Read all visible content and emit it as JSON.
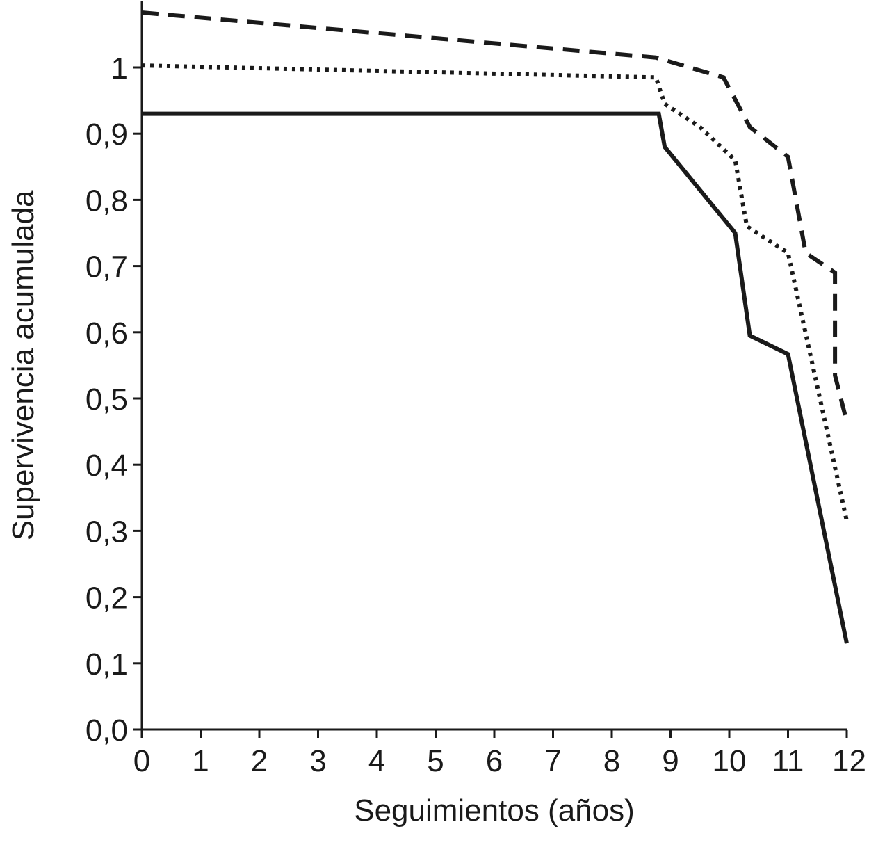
{
  "chart_data": {
    "type": "line",
    "title": "",
    "xlabel": "Seguimientos (años)",
    "ylabel": "Supervivencia acumulada",
    "xlim": [
      0,
      12
    ],
    "ylim": [
      0,
      1.1
    ],
    "x_ticks": [
      0,
      1,
      2,
      3,
      4,
      5,
      6,
      7,
      8,
      9,
      10,
      11,
      12
    ],
    "x_tick_labels": [
      "0",
      "1",
      "2",
      "3",
      "4",
      "5",
      "6",
      "7",
      "8",
      "9",
      "10",
      "11",
      "12"
    ],
    "y_ticks": [
      0,
      0.1,
      0.2,
      0.3,
      0.4,
      0.5,
      0.6,
      0.7,
      0.8,
      0.9,
      1
    ],
    "y_tick_labels": [
      "0,0",
      "0,1",
      "0,2",
      "0,3",
      "0,4",
      "0,5",
      "0,6",
      "0,7",
      "0,8",
      "0,9",
      "1"
    ],
    "grid": false,
    "legend": "none",
    "colors": {
      "line": "#1a1a1a",
      "background": "#ffffff"
    },
    "series": [
      {
        "style": "solid",
        "x": [
          0,
          8.8,
          8.9,
          10.1,
          10.35,
          11.0,
          12.0
        ],
        "y": [
          0.93,
          0.93,
          0.88,
          0.75,
          0.595,
          0.567,
          0.13
        ]
      },
      {
        "style": "dotted",
        "x": [
          0,
          8.75,
          8.9,
          9.5,
          10.1,
          10.3,
          11.0,
          12.0
        ],
        "y": [
          1.003,
          0.985,
          0.945,
          0.91,
          0.86,
          0.76,
          0.72,
          0.315
        ]
      },
      {
        "style": "dashed",
        "x": [
          0,
          8.75,
          9.9,
          10.35,
          11.0,
          11.3,
          11.8,
          11.8,
          12.0
        ],
        "y": [
          1.083,
          1.015,
          0.985,
          0.91,
          0.865,
          0.72,
          0.69,
          0.535,
          0.465
        ]
      }
    ]
  }
}
